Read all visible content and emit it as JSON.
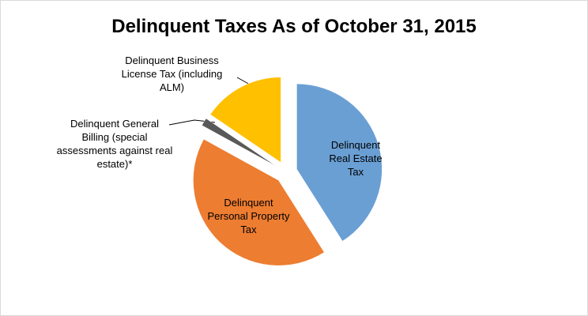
{
  "chart_data": {
    "type": "pie",
    "title": "Delinquent Taxes As of October 31, 2015",
    "categories": [
      "Delinquent Real Estate Tax",
      "Delinquent Personal Property Tax",
      "Delinquent General Billing (special assessments against real estate)*",
      "Delinquent Business License Tax (including ALM)"
    ],
    "values": [
      41,
      42,
      1.5,
      15.5
    ],
    "colors": [
      "#6a9fd4",
      "#ed7d31",
      "#595959",
      "#ffc000"
    ],
    "start_angle": 0,
    "direction": "clockwise",
    "exploded": true
  }
}
